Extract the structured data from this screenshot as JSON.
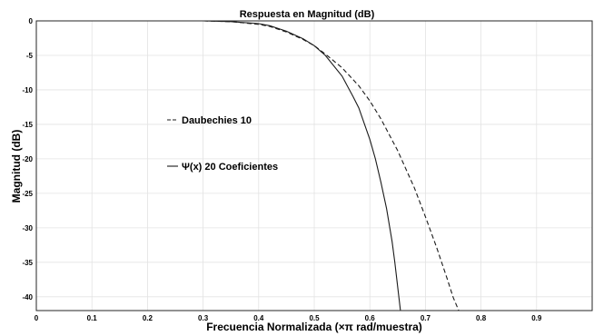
{
  "chart_data": {
    "type": "line",
    "title": "Respuesta en Magnitud (dB)",
    "xlabel": "Frecuencia Normalizada (×π rad/muestra)",
    "ylabel": "Magnitud (dB)",
    "xlim": [
      0,
      1
    ],
    "ylim": [
      -42,
      0
    ],
    "grid": true,
    "legend_placement": "center-left",
    "x_ticks": [
      0,
      0.1,
      0.2,
      0.3,
      0.4,
      0.5,
      0.6,
      0.7,
      0.8,
      0.9
    ],
    "x_tick_labels": [
      "0",
      "0.1",
      "0.2",
      "0.3",
      "0.4",
      "0.5",
      "0.6",
      "0.7",
      "0.8",
      "0.9"
    ],
    "y_ticks": [
      0,
      -5,
      -10,
      -15,
      -20,
      -25,
      -30,
      -35,
      -40
    ],
    "y_tick_labels": [
      "0",
      "-5",
      "-10",
      "-15",
      "-20",
      "-25",
      "-30",
      "-35",
      "-40"
    ],
    "series": [
      {
        "name": "Daubechies 10",
        "style": "dashed",
        "color": "#1a1a1a",
        "x": [
          0,
          0.3,
          0.35,
          0.4,
          0.42,
          0.45,
          0.48,
          0.5,
          0.52,
          0.55,
          0.58,
          0.6,
          0.62,
          0.65,
          0.68,
          0.7,
          0.72,
          0.74,
          0.75,
          0.76
        ],
        "y": [
          0,
          0,
          -0.1,
          -0.5,
          -0.8,
          -1.6,
          -2.7,
          -3.6,
          -4.8,
          -6.8,
          -9.4,
          -11.6,
          -14.2,
          -18.8,
          -24.2,
          -28.4,
          -32.8,
          -37.6,
          -40.1,
          -42
        ]
      },
      {
        "name": "Ψ(x) 20 Coeficientes",
        "style": "solid",
        "color": "#1a1a1a",
        "x": [
          0,
          0.3,
          0.35,
          0.4,
          0.42,
          0.45,
          0.48,
          0.5,
          0.52,
          0.55,
          0.57,
          0.58,
          0.6,
          0.61,
          0.62,
          0.63,
          0.64,
          0.645,
          0.65,
          0.655
        ],
        "y": [
          0,
          0,
          -0.1,
          -0.4,
          -0.7,
          -1.5,
          -2.6,
          -3.6,
          -5,
          -8,
          -11,
          -12.6,
          -17.2,
          -20,
          -23.4,
          -27.2,
          -32,
          -35,
          -38.5,
          -42
        ]
      }
    ]
  }
}
